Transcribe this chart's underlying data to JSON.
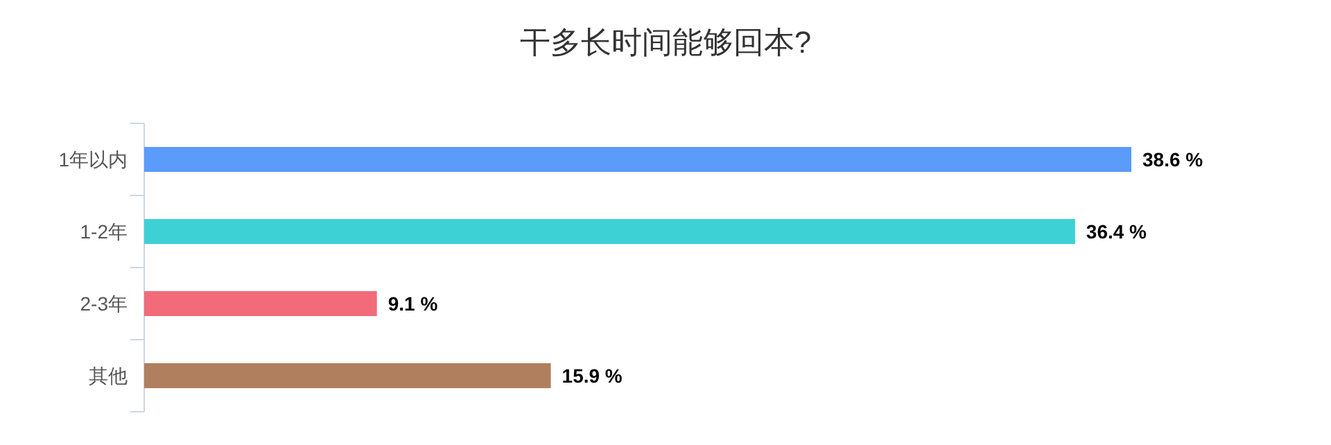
{
  "chart_data": {
    "type": "bar",
    "orientation": "horizontal",
    "title": "干多长时间能够回本?",
    "categories": [
      "1年以内",
      "1-2年",
      "2-3年",
      "其他"
    ],
    "values": [
      38.6,
      36.4,
      9.1,
      15.9
    ],
    "colors": [
      "#5b9bfa",
      "#3dd1d6",
      "#f26b7a",
      "#b07f5e"
    ],
    "value_labels": [
      "38.6 %",
      "36.4 %",
      "9.1 %",
      "15.9 %"
    ]
  }
}
